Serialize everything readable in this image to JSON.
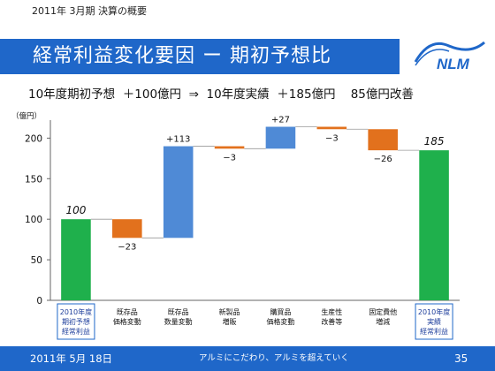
{
  "header": {
    "period": "2011年 3月期  決算の概要"
  },
  "title": "経常利益変化要因 ー 期初予想比",
  "subtitle": "10年度期初予想  ＋100億円  ⇒  10年度実績  ＋185億円    85億円改善",
  "logo": {
    "text": "NLM",
    "icon": "company-logo"
  },
  "colors": {
    "title_bar": "#1f67c9",
    "total": "#1fb04c",
    "decrease": "#e2711d",
    "increase": "#4f8ad6"
  },
  "chart_data": {
    "type": "bar",
    "subtype": "waterfall",
    "unit_label": "（億円）",
    "ylim": [
      0,
      220
    ],
    "yticks": [
      0,
      50,
      100,
      150,
      200
    ],
    "categories": [
      [
        "2010年度",
        "期初予想",
        "経常利益"
      ],
      [
        "既存品",
        "価格変動"
      ],
      [
        "既存品",
        "数量変動"
      ],
      [
        "新製品",
        "増販"
      ],
      [
        "購買品",
        "価格変動"
      ],
      [
        "生産性",
        "改善等"
      ],
      [
        "固定費他",
        "増減"
      ],
      [
        "2010年度",
        "実績",
        "経常利益"
      ]
    ],
    "values": [
      100,
      -23,
      113,
      -3,
      27,
      -3,
      -26,
      185
    ],
    "kinds": [
      "total",
      "delta",
      "delta",
      "delta",
      "delta",
      "delta",
      "delta",
      "total"
    ],
    "data_labels": [
      "100",
      "−23",
      "+113",
      "−3",
      "+27",
      "−3",
      "−26",
      "185"
    ]
  },
  "footer": {
    "date": "2011年 5月 18日",
    "slogan": "アルミにこだわり、アルミを超えていく",
    "page": "35"
  }
}
